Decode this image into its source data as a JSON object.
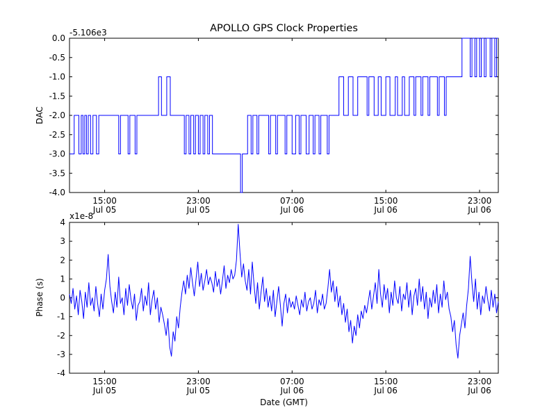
{
  "figure": {
    "title": "APOLLO GPS Clock Properties",
    "xlabel": "Date (GMT)",
    "background": "#ffffff",
    "line_color": "#0000ff",
    "x_range_hours": [
      0,
      36.6
    ],
    "xticks": [
      {
        "hour": 3,
        "time": "15:00",
        "date": "Jul 05"
      },
      {
        "hour": 11,
        "time": "23:00",
        "date": "Jul 05"
      },
      {
        "hour": 19,
        "time": "07:00",
        "date": "Jul 06"
      },
      {
        "hour": 27,
        "time": "15:00",
        "date": "Jul 06"
      },
      {
        "hour": 35,
        "time": "23:00",
        "date": "Jul 06"
      }
    ]
  },
  "chart_data": [
    {
      "type": "line",
      "subtype": "step",
      "title": "APOLLO GPS Clock Properties",
      "ylabel": "DAC",
      "offset_text": "-5.106e3",
      "ylim": [
        -4.0,
        0.0
      ],
      "yticks": [
        {
          "v": 0.0,
          "label": "0.0"
        },
        {
          "v": -0.5,
          "label": "-0.5"
        },
        {
          "v": -1.0,
          "label": "-1.0"
        },
        {
          "v": -1.5,
          "label": "-1.5"
        },
        {
          "v": -2.0,
          "label": "-2.0"
        },
        {
          "v": -2.5,
          "label": "-2.5"
        },
        {
          "v": -3.0,
          "label": "-3.0"
        },
        {
          "v": -3.5,
          "label": "-3.5"
        },
        {
          "v": -4.0,
          "label": "-4.0"
        }
      ],
      "steps": [
        [
          0,
          -3
        ],
        [
          0.4,
          -2
        ],
        [
          0.8,
          -3
        ],
        [
          1.0,
          -2
        ],
        [
          1.15,
          -3
        ],
        [
          1.3,
          -2
        ],
        [
          1.45,
          -3
        ],
        [
          1.6,
          -2
        ],
        [
          1.8,
          -3
        ],
        [
          2.0,
          -2
        ],
        [
          2.3,
          -3
        ],
        [
          2.5,
          -2
        ],
        [
          4.2,
          -3
        ],
        [
          4.35,
          -2
        ],
        [
          5.0,
          -3
        ],
        [
          5.15,
          -2
        ],
        [
          5.6,
          -3
        ],
        [
          5.75,
          -2
        ],
        [
          7.6,
          -1
        ],
        [
          7.85,
          -2
        ],
        [
          8.3,
          -1
        ],
        [
          8.6,
          -2
        ],
        [
          9.8,
          -3
        ],
        [
          9.95,
          -2
        ],
        [
          10.2,
          -3
        ],
        [
          10.35,
          -2
        ],
        [
          10.6,
          -3
        ],
        [
          10.75,
          -2
        ],
        [
          11.0,
          -3
        ],
        [
          11.15,
          -2
        ],
        [
          11.4,
          -3
        ],
        [
          11.55,
          -2
        ],
        [
          11.8,
          -3
        ],
        [
          11.95,
          -2
        ],
        [
          12.2,
          -3
        ],
        [
          14.6,
          -4
        ],
        [
          14.75,
          -3
        ],
        [
          15.2,
          -2
        ],
        [
          15.5,
          -3
        ],
        [
          15.65,
          -2
        ],
        [
          16.0,
          -3
        ],
        [
          16.15,
          -2
        ],
        [
          17.0,
          -3
        ],
        [
          17.15,
          -2
        ],
        [
          17.6,
          -3
        ],
        [
          17.75,
          -2
        ],
        [
          18.4,
          -3
        ],
        [
          18.55,
          -2
        ],
        [
          19.0,
          -3
        ],
        [
          19.3,
          -2
        ],
        [
          19.6,
          -3
        ],
        [
          19.75,
          -2
        ],
        [
          20.2,
          -3
        ],
        [
          20.45,
          -2
        ],
        [
          20.8,
          -3
        ],
        [
          20.95,
          -2
        ],
        [
          21.3,
          -3
        ],
        [
          21.45,
          -2
        ],
        [
          22.0,
          -3
        ],
        [
          22.15,
          -2
        ],
        [
          23.0,
          -1
        ],
        [
          23.4,
          -2
        ],
        [
          23.8,
          -1
        ],
        [
          24.2,
          -2
        ],
        [
          24.6,
          -1
        ],
        [
          25.4,
          -2
        ],
        [
          25.55,
          -1
        ],
        [
          26.0,
          -2
        ],
        [
          26.35,
          -1
        ],
        [
          26.6,
          -2
        ],
        [
          27.0,
          -1
        ],
        [
          27.35,
          -2
        ],
        [
          27.8,
          -1
        ],
        [
          28.0,
          -2
        ],
        [
          28.4,
          -1
        ],
        [
          28.6,
          -2
        ],
        [
          29.0,
          -1
        ],
        [
          29.4,
          -2
        ],
        [
          29.55,
          -1
        ],
        [
          30.0,
          -2
        ],
        [
          30.15,
          -1
        ],
        [
          30.6,
          -2
        ],
        [
          30.75,
          -1
        ],
        [
          31.4,
          -2
        ],
        [
          31.55,
          -1
        ],
        [
          32.0,
          -2
        ],
        [
          32.15,
          -1
        ],
        [
          33.5,
          0
        ],
        [
          34.2,
          -1
        ],
        [
          34.35,
          0
        ],
        [
          34.6,
          -1
        ],
        [
          34.75,
          0
        ],
        [
          35.0,
          -1
        ],
        [
          35.15,
          0
        ],
        [
          35.4,
          -1
        ],
        [
          35.55,
          0
        ],
        [
          35.9,
          -1
        ],
        [
          36.05,
          0
        ],
        [
          36.3,
          -1
        ],
        [
          36.45,
          0
        ]
      ]
    },
    {
      "type": "line",
      "ylabel": "Phase (s)",
      "multiplier_text": "x1e-8",
      "unit_scale": 1e-08,
      "ylim": [
        -4,
        4
      ],
      "xlabel": "Date (GMT)",
      "yticks": [
        {
          "v": 4,
          "label": "4"
        },
        {
          "v": 3,
          "label": "3"
        },
        {
          "v": 2,
          "label": "2"
        },
        {
          "v": 1,
          "label": "1"
        },
        {
          "v": 0,
          "label": "0"
        },
        {
          "v": -1,
          "label": "-1"
        },
        {
          "v": -2,
          "label": "-2"
        },
        {
          "v": -3,
          "label": "-3"
        },
        {
          "v": -4,
          "label": "-4"
        }
      ],
      "values_1e8": [
        0.2,
        -0.3,
        0.5,
        -0.6,
        0.1,
        -0.9,
        0.4,
        -0.2,
        -1.1,
        0.3,
        -0.5,
        0.8,
        -0.4,
        0.0,
        -0.7,
        0.6,
        -0.3,
        -1.0,
        0.2,
        -0.6,
        0.4,
        1.0,
        2.3,
        0.6,
        -0.2,
        -0.8,
        0.3,
        -0.5,
        1.1,
        -0.3,
        0.0,
        -0.9,
        0.5,
        -0.4,
        0.7,
        -0.1,
        -0.6,
        0.2,
        -1.2,
        -0.4,
        -0.2,
        0.5,
        -0.7,
        0.1,
        -0.4,
        0.8,
        -0.9,
        -0.1,
        0.4,
        -0.6,
        0.0,
        -1.3,
        -0.5,
        -0.9,
        -1.4,
        -2.0,
        -1.1,
        -2.6,
        -3.1,
        -1.8,
        -2.3,
        -1.0,
        -1.6,
        -0.5,
        0.3,
        0.9,
        0.2,
        1.2,
        0.5,
        1.6,
        0.8,
        0.1,
        1.0,
        1.9,
        0.6,
        1.3,
        0.4,
        0.9,
        1.5,
        0.7,
        1.1,
        0.8,
        0.3,
        1.4,
        0.6,
        1.0,
        0.2,
        0.9,
        1.7,
        0.5,
        1.2,
        0.8,
        1.5,
        1.0,
        1.2,
        2.0,
        3.9,
        2.4,
        1.1,
        1.8,
        0.9,
        0.4,
        1.5,
        0.2,
        1.9,
        0.7,
        -0.3,
        0.8,
        -0.6,
        0.3,
        1.1,
        -0.2,
        0.5,
        -0.5,
        0.1,
        -0.7,
        0.4,
        -1.0,
        -0.2,
        0.6,
        -0.4,
        -1.5,
        -0.3,
        0.2,
        -0.8,
        0.0,
        -0.5,
        -0.2,
        -0.6,
        0.1,
        -0.4,
        -0.9,
        -0.1,
        -0.5,
        0.3,
        -0.7,
        -0.2,
        0.0,
        -0.6,
        -0.3,
        0.4,
        -0.8,
        -0.1,
        -0.4,
        0.2,
        -0.6,
        -0.3,
        0.5,
        1.5,
        0.3,
        0.9,
        -0.2,
        0.6,
        -0.5,
        0.1,
        -0.9,
        -0.3,
        -1.3,
        -0.6,
        -1.8,
        -1.2,
        -2.4,
        -1.5,
        -2.0,
        -0.9,
        -1.6,
        -0.7,
        -1.1,
        -0.4,
        -0.8,
        -0.2,
        0.4,
        -0.6,
        0.1,
        0.8,
        -0.3,
        1.5,
        0.2,
        -0.5,
        0.7,
        -0.1,
        0.5,
        -0.8,
        0.3,
        -0.4,
        0.9,
        0.0,
        -0.3,
        0.6,
        -0.7,
        0.2,
        -0.1,
        0.8,
        -0.5,
        0.4,
        -0.9,
        0.1,
        0.5,
        -0.4,
        1.0,
        -0.2,
        0.6,
        -0.6,
        0.3,
        -1.1,
        0.0,
        -0.5,
        0.4,
        -0.3,
        0.7,
        -0.8,
        0.2,
        -0.5,
        0.9,
        -0.1,
        0.3,
        -0.6,
        -1.0,
        -1.8,
        -1.2,
        -2.5,
        -3.2,
        -2.0,
        -1.4,
        -0.8,
        -1.6,
        -0.4,
        0.5,
        2.2,
        0.8,
        -0.2,
        1.0,
        -0.6,
        0.3,
        -0.9,
        0.1,
        -0.3,
        0.6,
        -0.1,
        -0.7,
        0.4,
        -0.5,
        0.2,
        -0.8,
        -0.2
      ]
    }
  ]
}
